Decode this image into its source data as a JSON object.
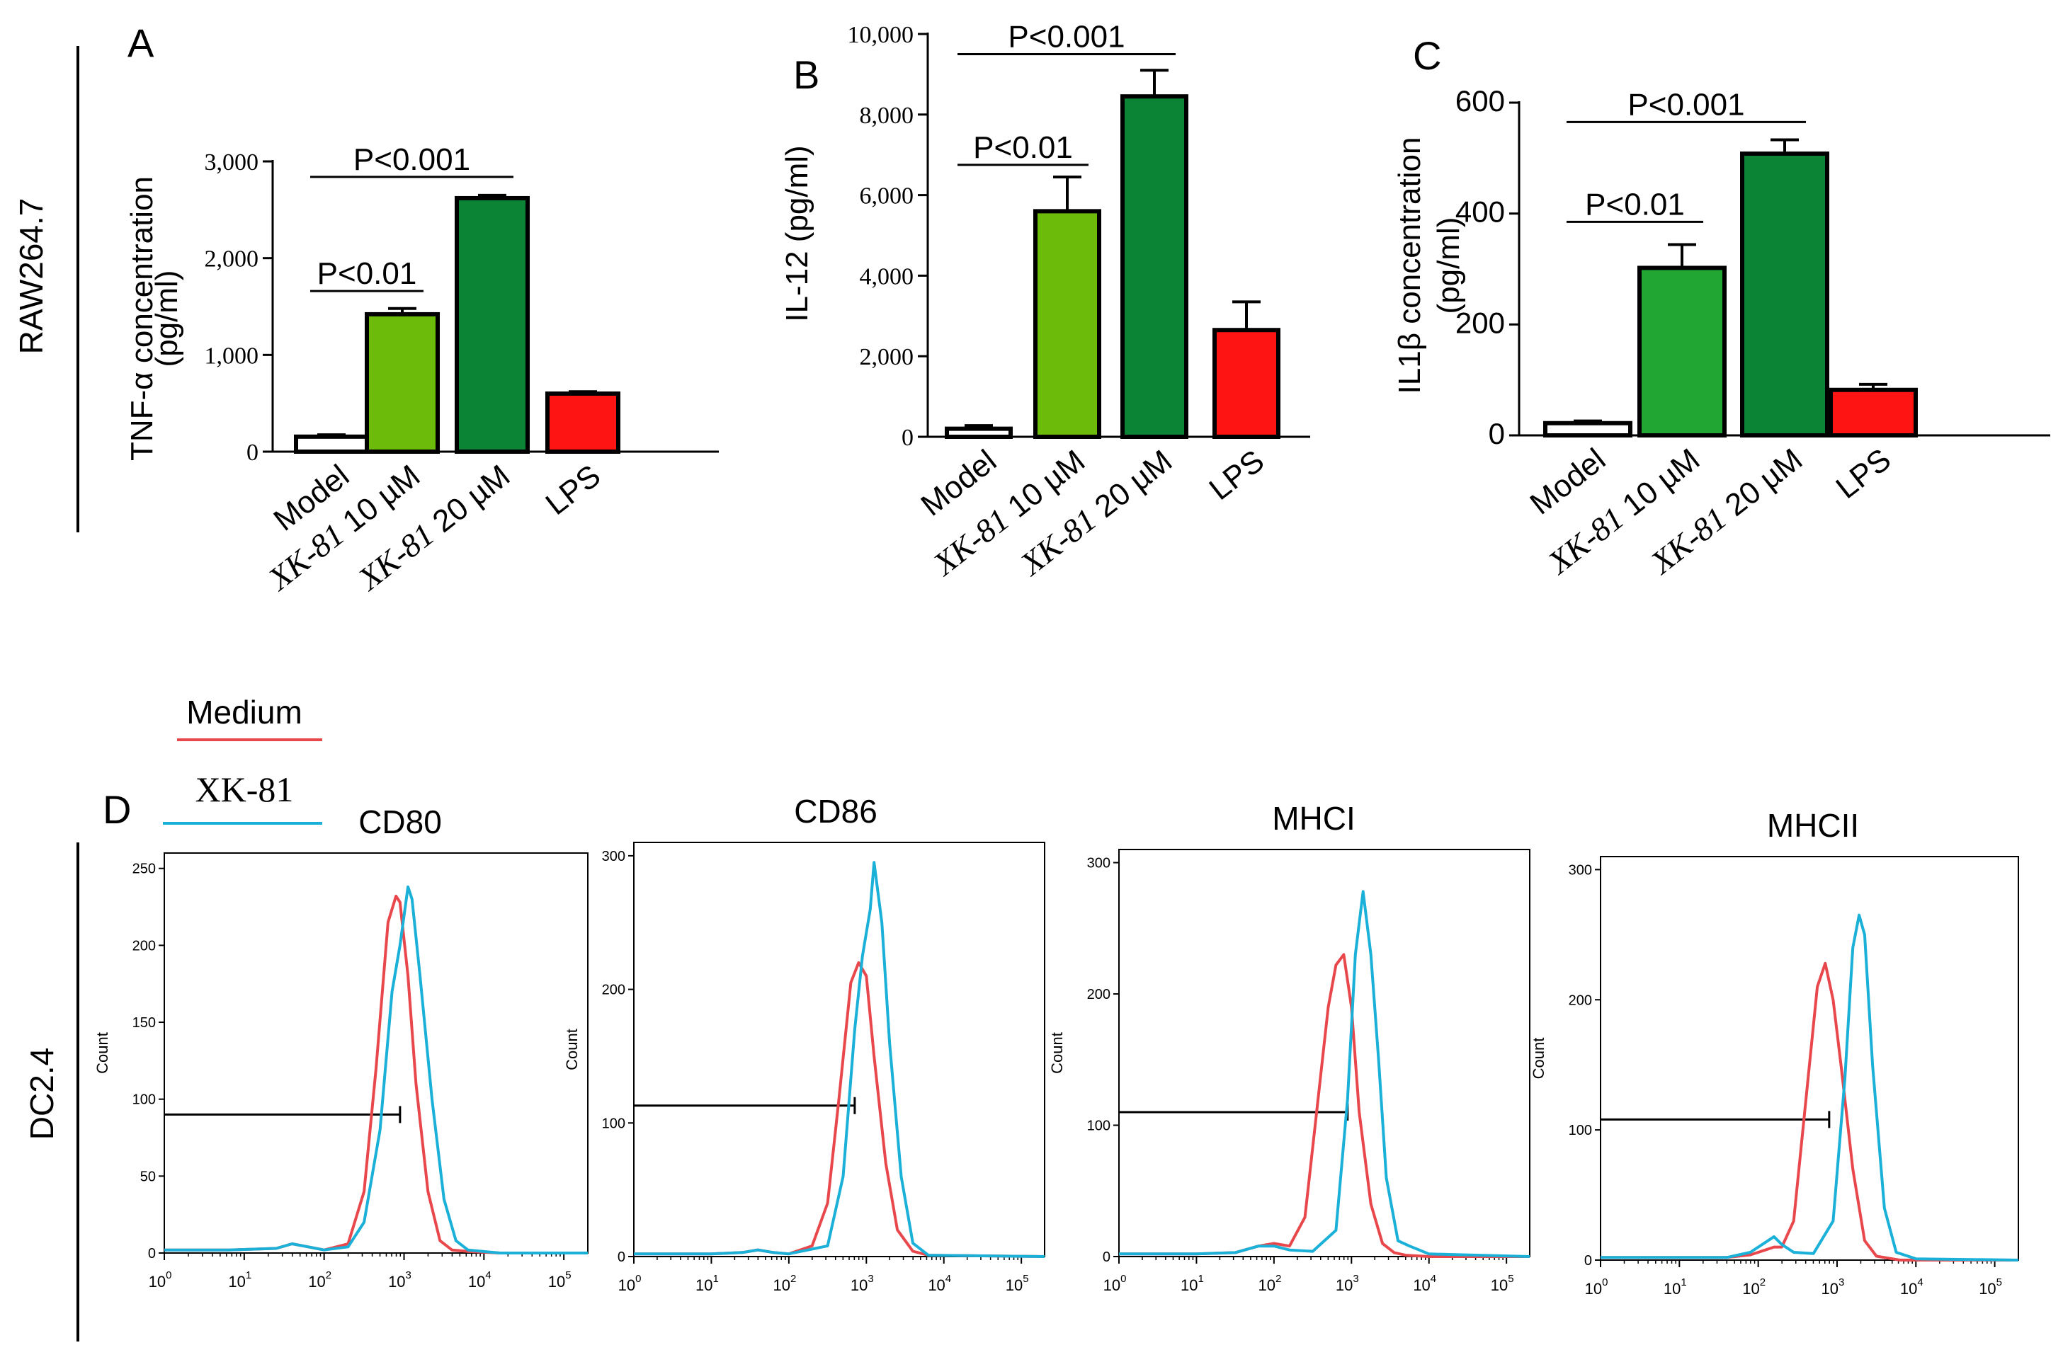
{
  "colors": {
    "model_fill": "#ffffff",
    "light_green": "#6cba0a",
    "mid_green": "#21a633",
    "dark_green": "#0b8535",
    "lps_red": "#ff1414",
    "medium_line": "#e8484c",
    "xk81_line": "#1ab0d8"
  },
  "row_labels": {
    "top": "RAW264.7",
    "bottom": "DC2.4"
  },
  "legend": {
    "medium": "Medium",
    "xk81": "XK-81"
  },
  "chart_data": [
    {
      "id": "A",
      "panel_label": "A",
      "type": "bar",
      "ylabel_line1": "TNF-α  concentration",
      "ylabel_line2": "(pg/ml)",
      "ylim": [
        0,
        3000
      ],
      "yticks": [
        0,
        1000,
        2000,
        3000
      ],
      "ytick_labels": [
        "0",
        "1,000",
        "2,000",
        "3,000"
      ],
      "categories": [
        {
          "text": "Model"
        },
        {
          "prefix": "XK-81",
          "text": " 10 µM"
        },
        {
          "prefix": "XK-81",
          "text": " 20 µM"
        },
        {
          "text": "LPS"
        }
      ],
      "values": [
        155,
        1420,
        2620,
        600
      ],
      "errors": [
        20,
        60,
        30,
        20
      ],
      "bar_colors": [
        "#ffffff",
        "#6cba0a",
        "#0b8535",
        "#ff1414"
      ],
      "annotations": [
        {
          "text": "P<0.01",
          "from": 0,
          "to": 1,
          "y": 1660
        },
        {
          "text": "P<0.001",
          "from": 0,
          "to": 2,
          "y": 2840
        }
      ]
    },
    {
      "id": "B",
      "panel_label": "B",
      "type": "bar",
      "ylabel_line1": "IL-12 (pg/ml)",
      "ylabel_line2": "",
      "ylim": [
        0,
        10000
      ],
      "yticks": [
        0,
        2000,
        4000,
        6000,
        8000,
        10000
      ],
      "ytick_labels": [
        "0",
        "2,000",
        "4,000",
        "6,000",
        "8,000",
        "10,000"
      ],
      "categories": [
        {
          "text": "Model"
        },
        {
          "prefix": "XK-81",
          "text": " 10 µM"
        },
        {
          "prefix": "XK-81",
          "text": " 20 µM"
        },
        {
          "text": "LPS"
        }
      ],
      "values": [
        200,
        5600,
        8450,
        2650
      ],
      "errors": [
        80,
        850,
        650,
        700
      ],
      "bar_colors": [
        "#ffffff",
        "#6cba0a",
        "#0b8535",
        "#ff1414"
      ],
      "annotations": [
        {
          "text": "P<0.01",
          "from": 0,
          "to": 1,
          "y": 6750
        },
        {
          "text": "P<0.001",
          "from": 0,
          "to": 2,
          "y": 9500
        }
      ]
    },
    {
      "id": "C",
      "panel_label": "C",
      "type": "bar",
      "ylabel_line1": "IL1β concentration",
      "ylabel_line2": "(pg/ml)",
      "ylim": [
        0,
        600
      ],
      "yticks": [
        0,
        200,
        400,
        600
      ],
      "ytick_labels": [
        "0",
        "200",
        "400",
        "600"
      ],
      "categories": [
        {
          "text": "Model"
        },
        {
          "prefix": "XK-81",
          "text": " 10 µM"
        },
        {
          "prefix": "XK-81",
          "text": " 20 µM"
        },
        {
          "text": "LPS"
        }
      ],
      "values": [
        22,
        302,
        508,
        82
      ],
      "errors": [
        4,
        42,
        25,
        10
      ],
      "bar_colors": [
        "#ffffff",
        "#21a633",
        "#0b8535",
        "#ff1414"
      ],
      "annotations": [
        {
          "text": "P<0.01",
          "from": 0,
          "to": 1,
          "y": 385
        },
        {
          "text": "P<0.001",
          "from": 0,
          "to": 2,
          "y": 565
        }
      ]
    },
    {
      "id": "D1",
      "panel_label": "D",
      "type": "line",
      "title": "CD80",
      "ylabel": "Count",
      "ylim": [
        0,
        260
      ],
      "yticks": [
        0,
        50,
        100,
        150,
        200,
        250
      ],
      "xscale": "log",
      "xlim": [
        0,
        5.3
      ],
      "xtick_exponents": [
        "0",
        "1",
        "2",
        "3",
        "4",
        "5"
      ],
      "gate": {
        "x_end": 2.95,
        "y": 90
      },
      "series": [
        {
          "name": "Medium",
          "x": [
            0,
            0.8,
            1.4,
            1.6,
            1.8,
            2.0,
            2.3,
            2.5,
            2.65,
            2.8,
            2.9,
            2.95,
            3.05,
            3.15,
            3.3,
            3.45,
            3.6,
            3.8,
            4.2,
            5.3
          ],
          "values": [
            2,
            2,
            3,
            6,
            4,
            2,
            6,
            40,
            120,
            215,
            232,
            228,
            180,
            110,
            40,
            8,
            2,
            1,
            0,
            0
          ]
        },
        {
          "name": "XK-81",
          "x": [
            0,
            0.8,
            1.4,
            1.6,
            1.8,
            2.0,
            2.3,
            2.5,
            2.7,
            2.85,
            2.95,
            3.05,
            3.1,
            3.2,
            3.35,
            3.5,
            3.65,
            3.8,
            4.2,
            5.3
          ],
          "values": [
            2,
            2,
            3,
            6,
            4,
            2,
            4,
            20,
            80,
            170,
            200,
            238,
            230,
            180,
            100,
            35,
            8,
            2,
            0,
            0
          ]
        }
      ]
    },
    {
      "id": "D2",
      "type": "line",
      "title": "CD86",
      "ylabel": "Count",
      "ylim": [
        0,
        310
      ],
      "yticks": [
        0,
        100,
        200,
        300
      ],
      "xscale": "log",
      "xlim": [
        0,
        5.3
      ],
      "xtick_exponents": [
        "0",
        "1",
        "2",
        "3",
        "4",
        "5"
      ],
      "gate": {
        "x_end": 2.85,
        "y": 113
      },
      "series": [
        {
          "name": "Medium",
          "x": [
            0,
            1.0,
            1.4,
            1.6,
            1.8,
            2.0,
            2.3,
            2.5,
            2.65,
            2.8,
            2.9,
            3.0,
            3.1,
            3.25,
            3.4,
            3.6,
            3.8,
            5.3
          ],
          "values": [
            2,
            2,
            3,
            5,
            3,
            2,
            8,
            40,
            120,
            205,
            220,
            210,
            150,
            70,
            20,
            4,
            1,
            0
          ]
        },
        {
          "name": "XK-81",
          "x": [
            0,
            1.0,
            1.4,
            1.6,
            1.8,
            2.0,
            2.5,
            2.7,
            2.85,
            2.95,
            3.05,
            3.1,
            3.2,
            3.3,
            3.45,
            3.6,
            3.8,
            5.3
          ],
          "values": [
            2,
            2,
            3,
            5,
            3,
            2,
            8,
            60,
            170,
            225,
            260,
            295,
            250,
            160,
            60,
            10,
            1,
            0
          ]
        }
      ]
    },
    {
      "id": "D3",
      "type": "line",
      "title": "MHCI",
      "ylabel": "Count",
      "ylim": [
        0,
        310
      ],
      "yticks": [
        0,
        100,
        200,
        300
      ],
      "xscale": "log",
      "xlim": [
        0,
        5.3
      ],
      "xtick_exponents": [
        "0",
        "1",
        "2",
        "3",
        "4",
        "5"
      ],
      "gate": {
        "x_end": 2.95,
        "y": 110
      },
      "series": [
        {
          "name": "Medium",
          "x": [
            0,
            1.0,
            1.5,
            1.8,
            2.0,
            2.2,
            2.4,
            2.55,
            2.7,
            2.8,
            2.9,
            3.0,
            3.1,
            3.25,
            3.4,
            3.55,
            3.7,
            4.0,
            5.3
          ],
          "values": [
            2,
            2,
            3,
            8,
            10,
            8,
            30,
            110,
            190,
            222,
            230,
            190,
            110,
            40,
            10,
            3,
            1,
            0,
            0
          ]
        },
        {
          "name": "XK-81",
          "x": [
            0,
            1.0,
            1.5,
            1.8,
            2.0,
            2.2,
            2.5,
            2.8,
            2.95,
            3.05,
            3.15,
            3.25,
            3.35,
            3.45,
            3.6,
            3.75,
            4.0,
            5.3
          ],
          "values": [
            2,
            2,
            3,
            8,
            8,
            5,
            4,
            20,
            120,
            230,
            278,
            230,
            150,
            60,
            12,
            8,
            2,
            0
          ]
        }
      ]
    },
    {
      "id": "D4",
      "type": "line",
      "title": "MHCII",
      "ylabel": "Count",
      "ylim": [
        0,
        310
      ],
      "yticks": [
        0,
        100,
        200,
        300
      ],
      "xscale": "log",
      "xlim": [
        0,
        5.3
      ],
      "xtick_exponents": [
        "0",
        "1",
        "2",
        "3",
        "4",
        "5"
      ],
      "gate": {
        "x_end": 2.9,
        "y": 108
      },
      "series": [
        {
          "name": "Medium",
          "x": [
            0,
            1.0,
            1.6,
            1.9,
            2.1,
            2.2,
            2.3,
            2.45,
            2.6,
            2.75,
            2.85,
            2.95,
            3.05,
            3.2,
            3.35,
            3.5,
            3.8,
            5.3
          ],
          "values": [
            2,
            2,
            2,
            4,
            8,
            10,
            10,
            30,
            120,
            210,
            228,
            200,
            150,
            70,
            15,
            3,
            0,
            0
          ]
        },
        {
          "name": "XK-81",
          "x": [
            0,
            1.0,
            1.6,
            1.9,
            2.1,
            2.2,
            2.3,
            2.45,
            2.7,
            2.95,
            3.1,
            3.2,
            3.28,
            3.35,
            3.45,
            3.6,
            3.75,
            4.0,
            5.3
          ],
          "values": [
            2,
            2,
            2,
            6,
            14,
            18,
            12,
            6,
            5,
            30,
            140,
            240,
            265,
            250,
            150,
            40,
            6,
            1,
            0
          ]
        }
      ]
    }
  ]
}
